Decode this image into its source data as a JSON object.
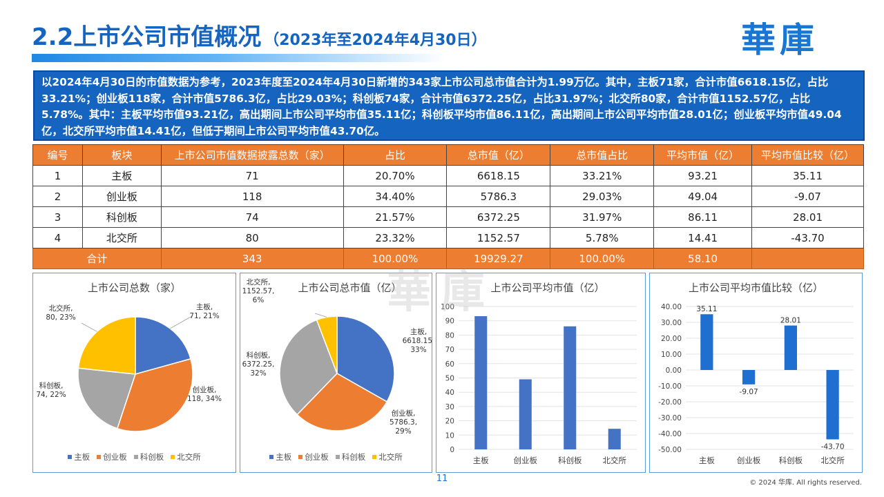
{
  "header": {
    "title": "2.2上市公司市值概况",
    "subtitle": "（2023年至2024年4月30日）",
    "logo_text": "華庫"
  },
  "summary": {
    "text": "以2024年4月30日的市值数据为参考，2023年度至2024年4月30日新增的343家上市公司总市值合计为1.99万亿。其中，主板71家，合计市值6618.15亿，占比33.21%；创业板118家，合计市值5786.3亿，占比29.03%；科创板74家，合计市值6372.25亿，占比31.97%；北交所80家，合计市值1152.57亿，占比5.78%。其中：主板平均市值93.21亿，高出期间上市公司平均市值35.11亿；科创板平均市值86.11亿，高出期间上市公司平均市值28.01亿；创业板平均市值49.04亿，北交所平均市值14.41亿，但低于期间上市公司平均市值43.70亿。"
  },
  "table": {
    "headers": [
      "编号",
      "板块",
      "上市公司市值数据披露总数（家）",
      "占比",
      "总市值（亿）",
      "总市值占比",
      "平均市值（亿）",
      "平均市值比较（亿）"
    ],
    "rows": [
      [
        "1",
        "主板",
        "71",
        "20.70%",
        "6618.15",
        "33.21%",
        "93.21",
        "35.11"
      ],
      [
        "2",
        "创业板",
        "118",
        "34.40%",
        "5786.3",
        "29.03%",
        "49.04",
        "-9.07"
      ],
      [
        "3",
        "科创板",
        "74",
        "21.57%",
        "6372.25",
        "31.97%",
        "86.11",
        "28.01"
      ],
      [
        "4",
        "北交所",
        "80",
        "23.32%",
        "1152.57",
        "5.78%",
        "14.41",
        "-43.70"
      ]
    ],
    "total": [
      "合计",
      "343",
      "100.00%",
      "19929.27",
      "100.00%",
      "58.10",
      ""
    ]
  },
  "colors": {
    "主板": "#4472c4",
    "创业板": "#ed7d31",
    "科创板": "#a5a5a5",
    "北交所": "#ffc000",
    "bar": "#4472c4",
    "bar2": "#1f6fd1"
  },
  "chart_data": [
    {
      "type": "pie",
      "title": "上市公司总数（家）",
      "categories": [
        "主板",
        "创业板",
        "科创板",
        "北交所"
      ],
      "values": [
        71,
        118,
        74,
        80
      ],
      "labels": [
        "主板, 71, 21%",
        "创业板, 118, 34%",
        "科创板, 74, 22%",
        "北交所, 80, 23%"
      ],
      "legend": "bottom"
    },
    {
      "type": "pie",
      "title": "上市公司总市值（亿）",
      "categories": [
        "主板",
        "创业板",
        "科创板",
        "北交所"
      ],
      "values": [
        6618.15,
        5786.3,
        6372.25,
        1152.57
      ],
      "labels": [
        "主板, 6618.15, 33%",
        "创业板, 5786.3, 29%",
        "科创板, 6372.25, 32%",
        "北交所, 1152.57, 6%"
      ],
      "legend": "bottom"
    },
    {
      "type": "bar",
      "title": "上市公司平均市值（亿）",
      "categories": [
        "主板",
        "创业板",
        "科创板",
        "北交所"
      ],
      "values": [
        93.21,
        49.04,
        86.11,
        14.41
      ],
      "ylim": [
        0,
        100
      ],
      "yticks": [
        "0",
        "10",
        "20",
        "30",
        "40",
        "50",
        "60",
        "70",
        "80",
        "90",
        "100"
      ],
      "grid": true
    },
    {
      "type": "bar",
      "title": "上市公司平均市值比较（亿）",
      "categories": [
        "主板",
        "创业板",
        "科创板",
        "北交所"
      ],
      "values": [
        35.11,
        -9.07,
        28.01,
        -43.7
      ],
      "data_labels": [
        "35.11",
        "-9.07",
        "28.01",
        "-43.70"
      ],
      "ylim": [
        -50,
        40
      ],
      "yticks": [
        "40.00",
        "30.00",
        "20.00",
        "10.00",
        "0.00",
        "-10.00",
        "-20.00",
        "-30.00",
        "-40.00",
        "-50.00"
      ],
      "grid": true
    }
  ],
  "footer": {
    "page_number": "11",
    "copyright": "© 2024 华库. All rights reserved."
  }
}
